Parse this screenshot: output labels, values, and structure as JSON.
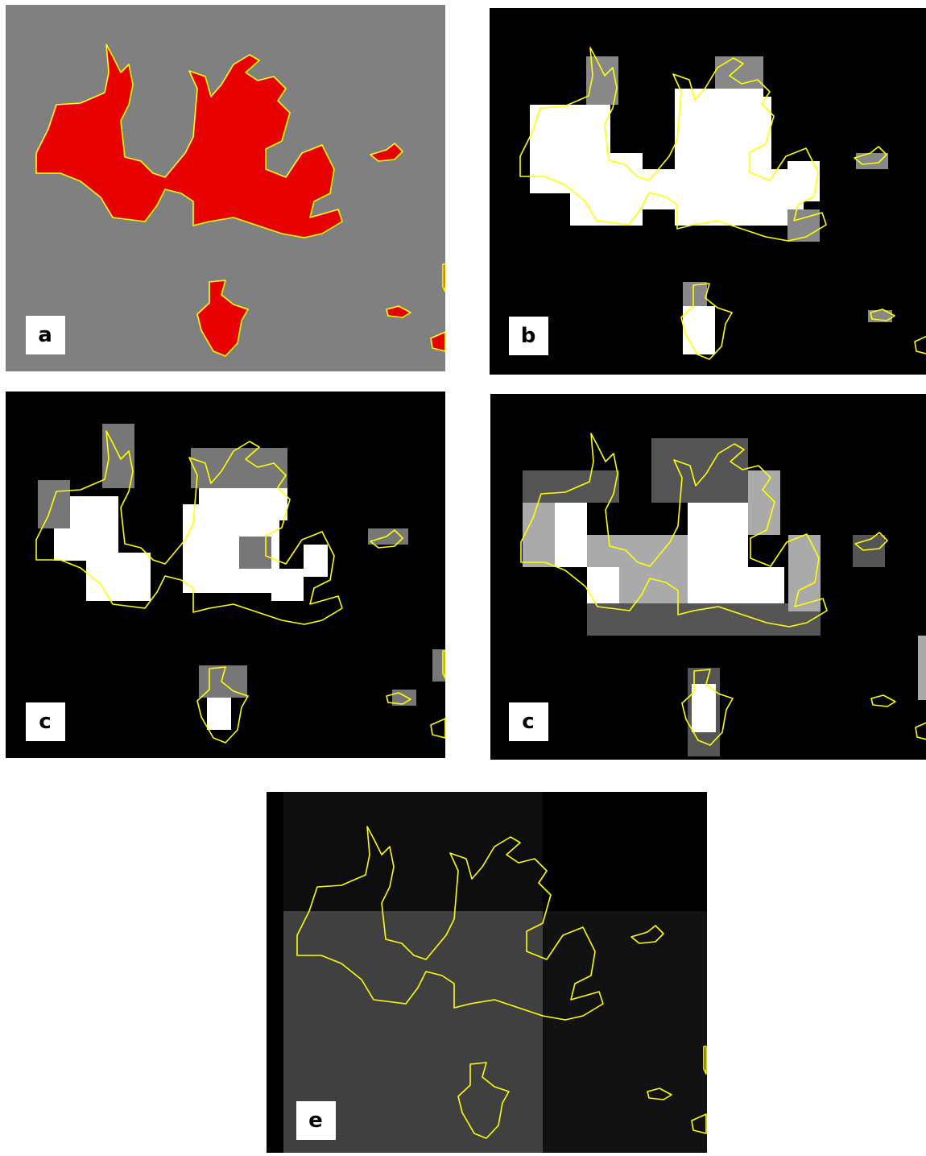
{
  "panels": [
    {
      "label": "a"
    },
    {
      "label": "b"
    },
    {
      "label": "c"
    },
    {
      "label": "c"
    },
    {
      "label": "e"
    }
  ]
}
